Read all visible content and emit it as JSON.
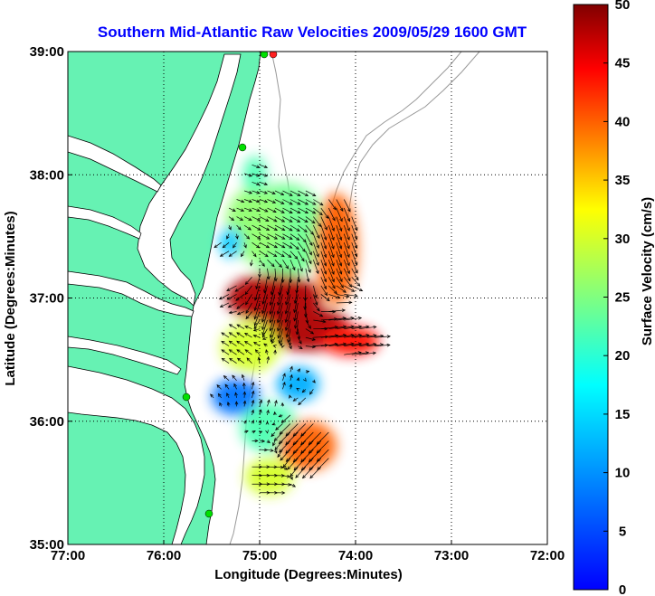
{
  "chart_data": {
    "type": "heatmap",
    "title": "Southern Mid-Atlantic Raw Velocities 2009/05/29 1600 GMT",
    "xlabel": "Longitude (Degrees:Minutes)",
    "ylabel": "Latitude (Degrees:Minutes)",
    "x_tick_values": [
      -77,
      -76,
      -75,
      -74,
      -73,
      -72
    ],
    "x_tick_labels": [
      "77:00",
      "76:00",
      "75:00",
      "74:00",
      "73:00",
      "72:00"
    ],
    "y_tick_values": [
      35,
      36,
      37,
      38,
      39
    ],
    "y_tick_labels": [
      "35:00",
      "36:00",
      "37:00",
      "38:00",
      "39:00"
    ],
    "xlim": [
      -77,
      -72
    ],
    "ylim": [
      35,
      39
    ],
    "grid": true,
    "colorbar": {
      "label": "Surface Velocity (cm/s)",
      "range": [
        0,
        50
      ],
      "tick_values": [
        0,
        5,
        10,
        15,
        20,
        25,
        30,
        35,
        40,
        45,
        50
      ],
      "tick_labels": [
        "0",
        "5",
        "10",
        "15",
        "20",
        "25",
        "30",
        "35",
        "40",
        "45",
        "50"
      ],
      "colormap": "jet",
      "placement": "right"
    },
    "speed_regions": [
      {
        "lon": -74.75,
        "lat": 37.55,
        "r_lon": 0.45,
        "r_lat": 0.38,
        "speed": 24
      },
      {
        "lon": -75.05,
        "lat": 37.6,
        "r_lon": 0.3,
        "r_lat": 0.3,
        "speed": 26
      },
      {
        "lon": -75.3,
        "lat": 37.45,
        "r_lon": 0.12,
        "r_lat": 0.12,
        "speed": 14
      },
      {
        "lon": -74.2,
        "lat": 37.4,
        "r_lon": 0.22,
        "r_lat": 0.45,
        "speed": 40
      },
      {
        "lon": -74.85,
        "lat": 37.0,
        "r_lon": 0.5,
        "r_lat": 0.2,
        "speed": 48
      },
      {
        "lon": -74.5,
        "lat": 36.75,
        "r_lon": 0.45,
        "r_lat": 0.18,
        "speed": 48
      },
      {
        "lon": -74.05,
        "lat": 36.65,
        "r_lon": 0.3,
        "r_lat": 0.12,
        "speed": 44
      },
      {
        "lon": -75.1,
        "lat": 36.6,
        "r_lon": 0.3,
        "r_lat": 0.2,
        "speed": 30
      },
      {
        "lon": -75.25,
        "lat": 36.2,
        "r_lon": 0.25,
        "r_lat": 0.15,
        "speed": 8
      },
      {
        "lon": -74.6,
        "lat": 36.3,
        "r_lon": 0.22,
        "r_lat": 0.14,
        "speed": 12
      },
      {
        "lon": -74.9,
        "lat": 35.95,
        "r_lon": 0.3,
        "r_lat": 0.2,
        "speed": 22
      },
      {
        "lon": -74.5,
        "lat": 35.8,
        "r_lon": 0.3,
        "r_lat": 0.2,
        "speed": 40
      },
      {
        "lon": -74.9,
        "lat": 35.55,
        "r_lon": 0.25,
        "r_lat": 0.15,
        "speed": 30
      },
      {
        "lon": -75.05,
        "lat": 38.0,
        "r_lon": 0.12,
        "r_lat": 0.15,
        "speed": 22
      }
    ],
    "vector_field": {
      "samples": [
        {
          "lon": -75.1,
          "lat": 37.9,
          "u": 15,
          "v": -5
        },
        {
          "lon": -74.6,
          "lat": 37.8,
          "u": 20,
          "v": -10
        },
        {
          "lon": -74.3,
          "lat": 37.5,
          "u": 10,
          "v": -30
        },
        {
          "lon": -74.9,
          "lat": 37.5,
          "u": 20,
          "v": -10
        },
        {
          "lon": -75.3,
          "lat": 37.2,
          "u": -20,
          "v": -10
        },
        {
          "lon": -74.8,
          "lat": 37.0,
          "u": -10,
          "v": -40
        },
        {
          "lon": -74.2,
          "lat": 36.7,
          "u": 35,
          "v": 5
        },
        {
          "lon": -75.2,
          "lat": 36.6,
          "u": -15,
          "v": 10
        },
        {
          "lon": -74.9,
          "lat": 36.3,
          "u": 5,
          "v": 15
        },
        {
          "lon": -74.5,
          "lat": 35.9,
          "u": -25,
          "v": -25
        },
        {
          "lon": -75.0,
          "lat": 35.5,
          "u": 20,
          "v": 0
        }
      ]
    }
  }
}
